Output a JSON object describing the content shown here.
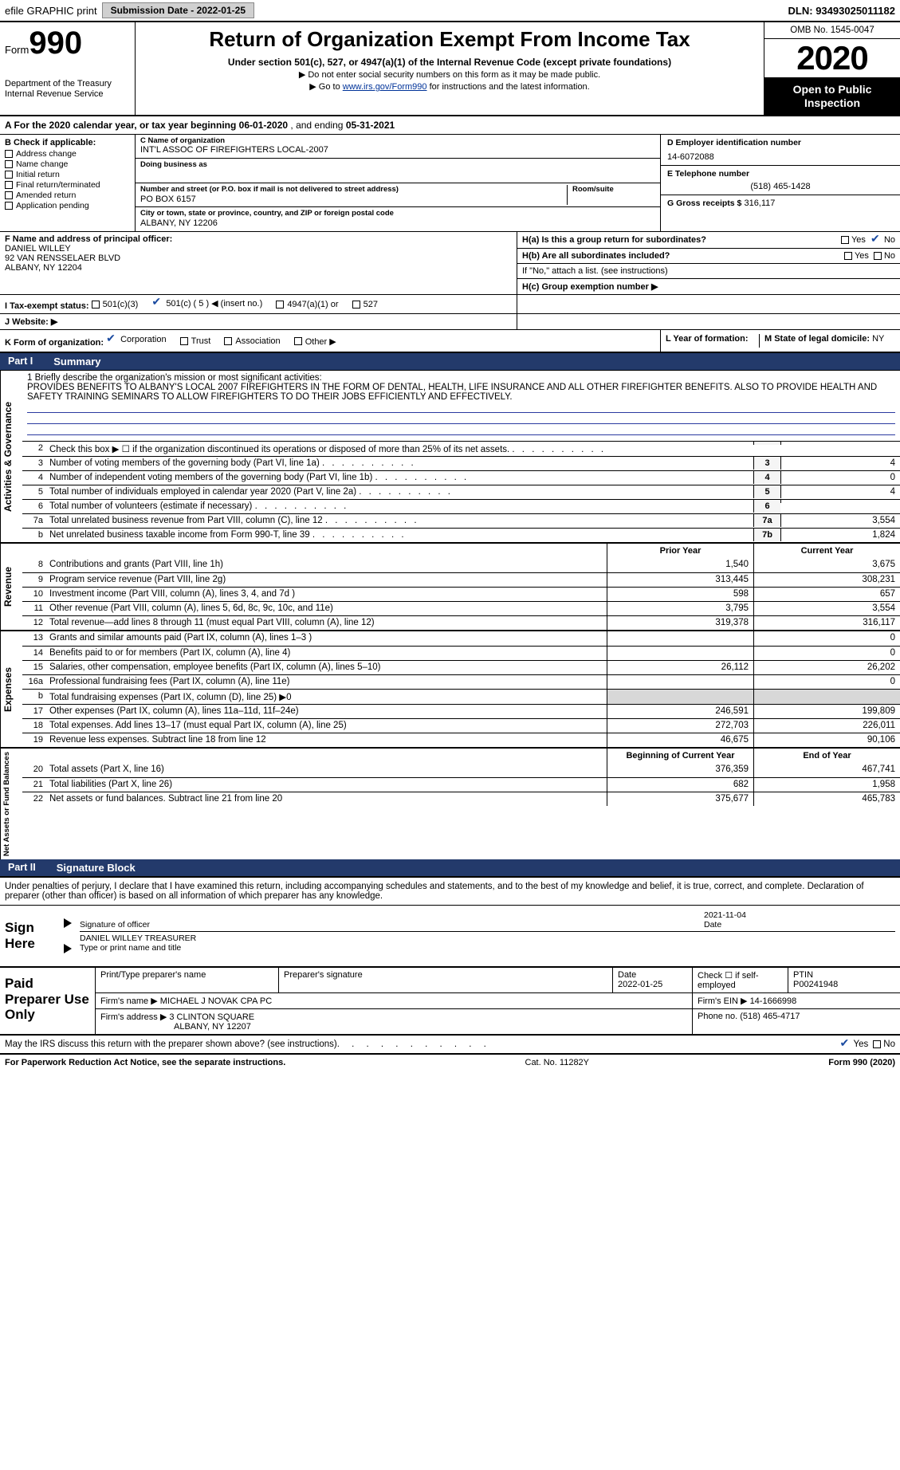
{
  "colors": {
    "part_header_bg": "#233a6b",
    "link": "#003399",
    "check": "#1a4aa0",
    "grey_cell": "#d8d8d8"
  },
  "topbar": {
    "efile": "efile GRAPHIC print",
    "submission_label": "Submission Date - 2022-01-25",
    "dln_label": "DLN: 93493025011182"
  },
  "header": {
    "form_word": "Form",
    "form_num": "990",
    "dept": "Department of the Treasury\nInternal Revenue Service",
    "title": "Return of Organization Exempt From Income Tax",
    "sub": "Under section 501(c), 527, or 4947(a)(1) of the Internal Revenue Code (except private foundations)",
    "note1": "▶ Do not enter social security numbers on this form as it may be made public.",
    "note2_pre": "▶ Go to ",
    "note2_link": "www.irs.gov/Form990",
    "note2_post": " for instructions and the latest information.",
    "omb": "OMB No. 1545-0047",
    "year": "2020",
    "open": "Open to Public Inspection"
  },
  "period": {
    "prefix": "A For the 2020 calendar year, or tax year beginning ",
    "begin": "06-01-2020",
    "mid": " , and ending ",
    "end": "05-31-2021"
  },
  "sectionB": {
    "label": "B Check if applicable:",
    "items": [
      "Address change",
      "Name change",
      "Initial return",
      "Final return/terminated",
      "Amended return",
      "Application pending"
    ]
  },
  "sectionC": {
    "name_lbl": "C Name of organization",
    "name": "INT'L ASSOC OF FIREFIGHTERS LOCAL-2007",
    "dba_lbl": "Doing business as",
    "addr_lbl": "Number and street (or P.O. box if mail is not delivered to street address)",
    "room_lbl": "Room/suite",
    "addr": "PO BOX 6157",
    "city_lbl": "City or town, state or province, country, and ZIP or foreign postal code",
    "city": "ALBANY, NY  12206"
  },
  "sectionD": {
    "lbl": "D Employer identification number",
    "val": "14-6072088"
  },
  "sectionE": {
    "lbl": "E Telephone number",
    "val": "(518) 465-1428"
  },
  "sectionG": {
    "lbl": "G Gross receipts $",
    "val": "316,117"
  },
  "sectionF": {
    "lbl": "F  Name and address of principal officer:",
    "name": "DANIEL WILLEY",
    "addr1": "92 VAN RENSSELAER BLVD",
    "addr2": "ALBANY, NY  12204"
  },
  "sectionH": {
    "a_lbl": "H(a)  Is this a group return for subordinates?",
    "b_lbl": "H(b)  Are all subordinates included?",
    "b_note": "If \"No,\" attach a list. (see instructions)",
    "c_lbl": "H(c)  Group exemption number ▶",
    "yes": "Yes",
    "no": "No"
  },
  "sectionI": {
    "lbl": "I  Tax-exempt status:",
    "opts": [
      "501(c)(3)",
      "501(c) ( 5 ) ◀ (insert no.)",
      "4947(a)(1) or",
      "527"
    ],
    "checked_index": 1
  },
  "sectionJ": {
    "lbl": "J  Website: ▶"
  },
  "sectionK": {
    "lbl": "K Form of organization:",
    "opts": [
      "Corporation",
      "Trust",
      "Association",
      "Other ▶"
    ],
    "checked_index": 0
  },
  "sectionL": {
    "lbl": "L Year of formation:"
  },
  "sectionM": {
    "lbl": "M State of legal domicile:",
    "val": "NY"
  },
  "partI": {
    "num": "Part I",
    "title": "Summary"
  },
  "mission": {
    "lbl": "1  Briefly describe the organization's mission or most significant activities:",
    "text": "PROVIDES BENEFITS TO ALBANY'S LOCAL 2007 FIREFIGHTERS IN THE FORM OF DENTAL, HEALTH, LIFE INSURANCE AND ALL OTHER FIREFIGHTER BENEFITS. ALSO TO PROVIDE HEALTH AND SAFETY TRAINING SEMINARS TO ALLOW FIREFIGHTERS TO DO THEIR JOBS EFFICIENTLY AND EFFECTIVELY."
  },
  "gov_lines": [
    {
      "n": "2",
      "t": "Check this box ▶ ☐  if the organization discontinued its operations or disposed of more than 25% of its net assets.",
      "code": "",
      "val": ""
    },
    {
      "n": "3",
      "t": "Number of voting members of the governing body (Part VI, line 1a)",
      "code": "3",
      "val": "4"
    },
    {
      "n": "4",
      "t": "Number of independent voting members of the governing body (Part VI, line 1b)",
      "code": "4",
      "val": "0"
    },
    {
      "n": "5",
      "t": "Total number of individuals employed in calendar year 2020 (Part V, line 2a)",
      "code": "5",
      "val": "4"
    },
    {
      "n": "6",
      "t": "Total number of volunteers (estimate if necessary)",
      "code": "6",
      "val": ""
    },
    {
      "n": "7a",
      "t": "Total unrelated business revenue from Part VIII, column (C), line 12",
      "code": "7a",
      "val": "3,554"
    },
    {
      "n": "b",
      "t": "Net unrelated business taxable income from Form 990-T, line 39",
      "code": "7b",
      "val": "1,824"
    }
  ],
  "vtabs": {
    "gov": "Activities & Governance",
    "rev": "Revenue",
    "exp": "Expenses",
    "net": "Net Assets or Fund Balances"
  },
  "col_heads": {
    "prior": "Prior Year",
    "curr": "Current Year",
    "boy": "Beginning of Current Year",
    "eoy": "End of Year"
  },
  "rev_lines": [
    {
      "n": "8",
      "t": "Contributions and grants (Part VIII, line 1h)",
      "p": "1,540",
      "c": "3,675"
    },
    {
      "n": "9",
      "t": "Program service revenue (Part VIII, line 2g)",
      "p": "313,445",
      "c": "308,231"
    },
    {
      "n": "10",
      "t": "Investment income (Part VIII, column (A), lines 3, 4, and 7d )",
      "p": "598",
      "c": "657"
    },
    {
      "n": "11",
      "t": "Other revenue (Part VIII, column (A), lines 5, 6d, 8c, 9c, 10c, and 11e)",
      "p": "3,795",
      "c": "3,554"
    },
    {
      "n": "12",
      "t": "Total revenue—add lines 8 through 11 (must equal Part VIII, column (A), line 12)",
      "p": "319,378",
      "c": "316,117"
    }
  ],
  "exp_lines": [
    {
      "n": "13",
      "t": "Grants and similar amounts paid (Part IX, column (A), lines 1–3 )",
      "p": "",
      "c": "0"
    },
    {
      "n": "14",
      "t": "Benefits paid to or for members (Part IX, column (A), line 4)",
      "p": "",
      "c": "0"
    },
    {
      "n": "15",
      "t": "Salaries, other compensation, employee benefits (Part IX, column (A), lines 5–10)",
      "p": "26,112",
      "c": "26,202"
    },
    {
      "n": "16a",
      "t": "Professional fundraising fees (Part IX, column (A), line 11e)",
      "p": "",
      "c": "0"
    },
    {
      "n": "b",
      "t": "Total fundraising expenses (Part IX, column (D), line 25) ▶0",
      "p": "grey",
      "c": "grey"
    },
    {
      "n": "17",
      "t": "Other expenses (Part IX, column (A), lines 11a–11d, 11f–24e)",
      "p": "246,591",
      "c": "199,809"
    },
    {
      "n": "18",
      "t": "Total expenses. Add lines 13–17 (must equal Part IX, column (A), line 25)",
      "p": "272,703",
      "c": "226,011"
    },
    {
      "n": "19",
      "t": "Revenue less expenses. Subtract line 18 from line 12",
      "p": "46,675",
      "c": "90,106"
    }
  ],
  "net_lines": [
    {
      "n": "20",
      "t": "Total assets (Part X, line 16)",
      "p": "376,359",
      "c": "467,741"
    },
    {
      "n": "21",
      "t": "Total liabilities (Part X, line 26)",
      "p": "682",
      "c": "1,958"
    },
    {
      "n": "22",
      "t": "Net assets or fund balances. Subtract line 21 from line 20",
      "p": "375,677",
      "c": "465,783"
    }
  ],
  "partII": {
    "num": "Part II",
    "title": "Signature Block"
  },
  "sig": {
    "decl": "Under penalties of perjury, I declare that I have examined this return, including accompanying schedules and statements, and to the best of my knowledge and belief, it is true, correct, and complete. Declaration of preparer (other than officer) is based on all information of which preparer has any knowledge.",
    "sign_here": "Sign Here",
    "sig_officer": "Signature of officer",
    "date_lbl": "Date",
    "date": "2021-11-04",
    "name": "DANIEL WILLEY TREASURER",
    "name_lbl": "Type or print name and title"
  },
  "paid": {
    "label": "Paid Preparer Use Only",
    "h1": "Print/Type preparer's name",
    "h2": "Preparer's signature",
    "h3_lbl": "Date",
    "h3": "2022-01-25",
    "h4": "Check ☐ if self-employed",
    "h5_lbl": "PTIN",
    "h5": "P00241948",
    "firm_name_lbl": "Firm's name    ▶",
    "firm_name": "MICHAEL J NOVAK CPA PC",
    "firm_ein_lbl": "Firm's EIN ▶",
    "firm_ein": "14-1666998",
    "firm_addr_lbl": "Firm's address ▶",
    "firm_addr1": "3 CLINTON SQUARE",
    "firm_addr2": "ALBANY, NY  12207",
    "phone_lbl": "Phone no.",
    "phone": "(518) 465-4717"
  },
  "irs_discuss": {
    "t": "May the IRS discuss this return with the preparer shown above? (see instructions)",
    "yes": "Yes",
    "no": "No"
  },
  "footer": {
    "left": "For Paperwork Reduction Act Notice, see the separate instructions.",
    "mid": "Cat. No. 11282Y",
    "right": "Form 990 (2020)"
  }
}
